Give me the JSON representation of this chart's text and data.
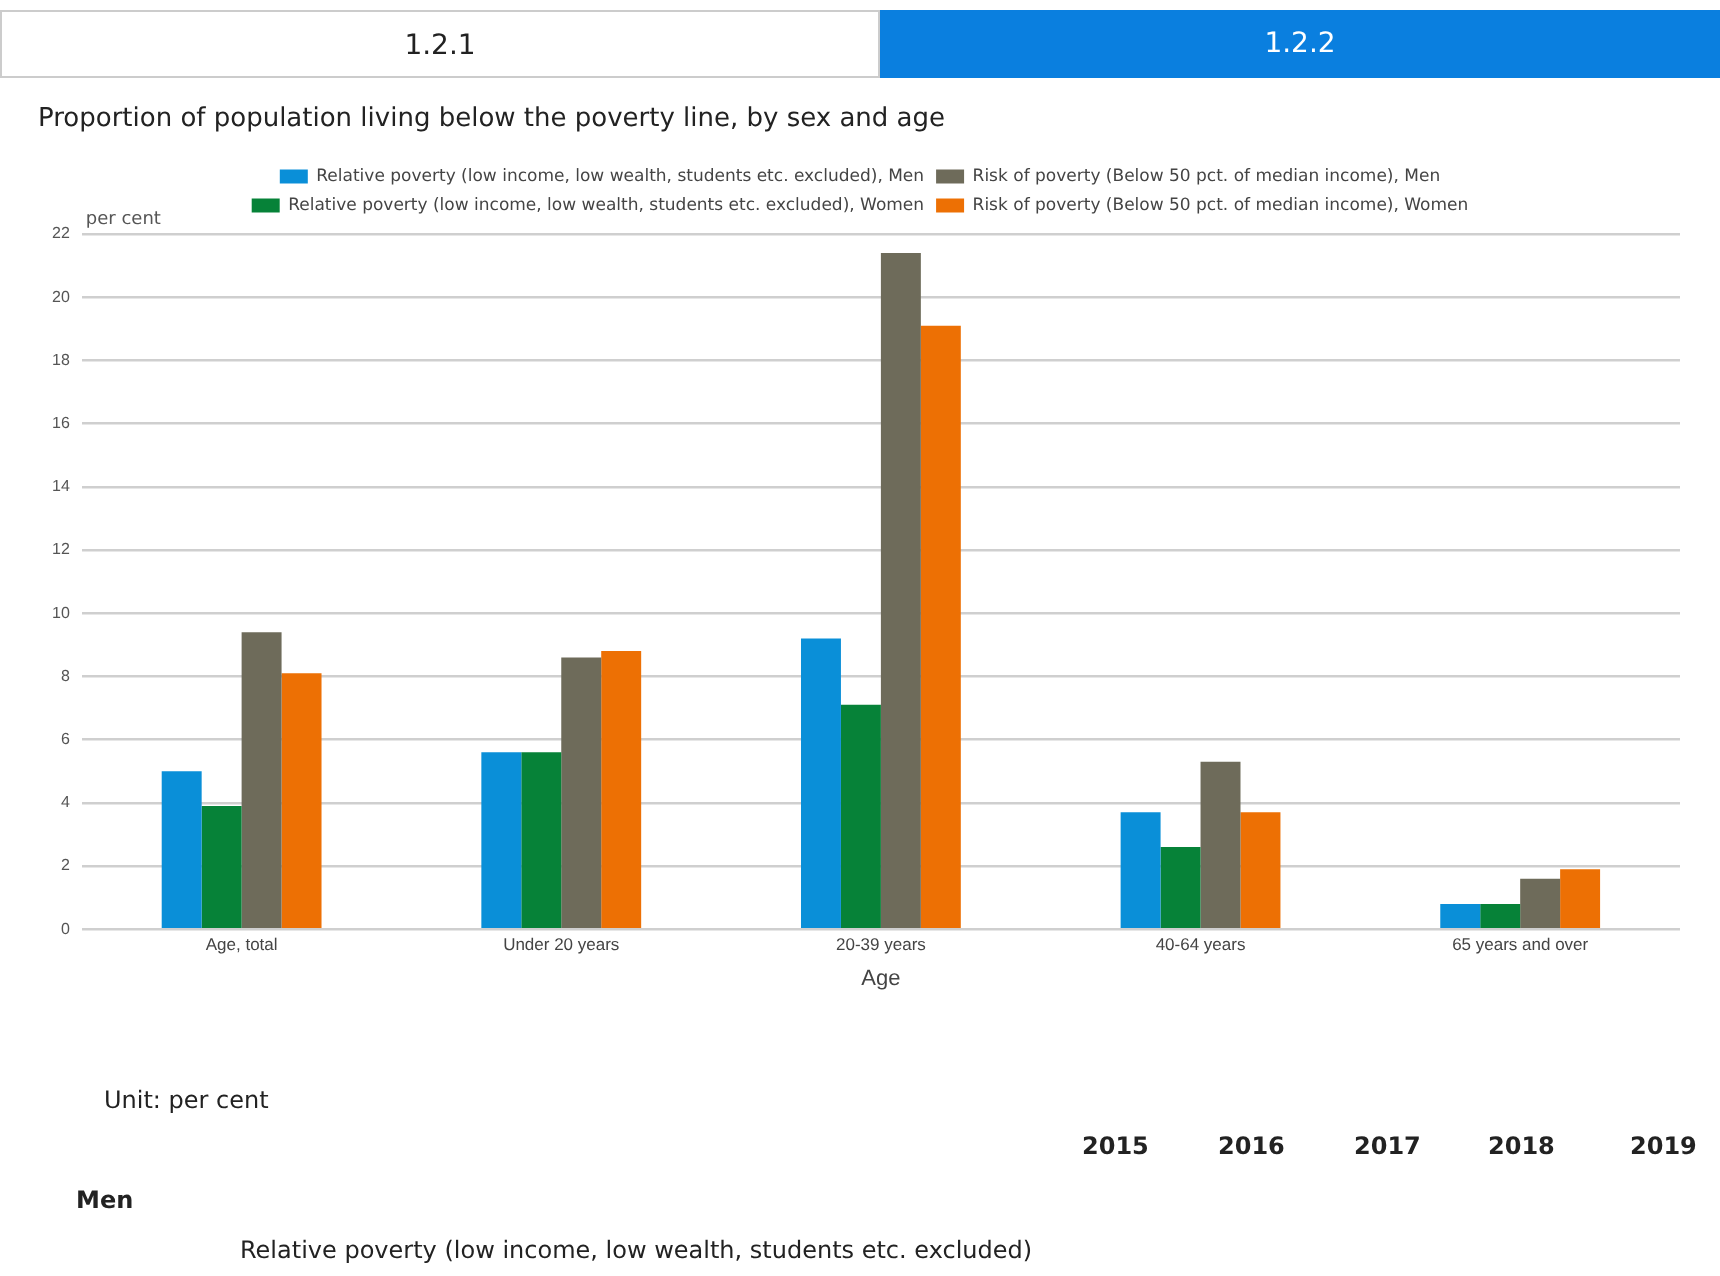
{
  "chart_data": {
    "type": "bar",
    "title": "Proportion of population living below the poverty line, by sex and age",
    "xlabel": "Age",
    "ylabel": "per cent",
    "categories": [
      "Age, total",
      "Under 20 years",
      "20-39 years",
      "40-64 years",
      "65 years and over"
    ],
    "series": [
      {
        "name": "Relative poverty (low income, low wealth, students etc. excluded), Men",
        "color": "#0a8fd8",
        "values": [
          5.0,
          5.6,
          9.2,
          3.7,
          0.8
        ]
      },
      {
        "name": "Relative poverty (low income, low wealth, students etc. excluded), Women",
        "color": "#068238",
        "values": [
          3.9,
          5.6,
          7.1,
          2.6,
          0.8
        ]
      },
      {
        "name": "Risk of poverty (Below 50 pct. of median income), Men",
        "color": "#6e6b5a",
        "values": [
          9.4,
          8.6,
          21.4,
          5.3,
          1.6
        ]
      },
      {
        "name": "Risk of poverty (Below 50 pct. of median income), Women",
        "color": "#ed7004",
        "values": [
          8.1,
          8.8,
          19.1,
          3.7,
          1.9
        ]
      }
    ],
    "ylim": [
      0,
      22
    ],
    "yticks": [
      0,
      2,
      4,
      6,
      8,
      10,
      12,
      14,
      16,
      18,
      20,
      22
    ],
    "grid": "y",
    "legend": "top",
    "annotations": [
      "1.2.1",
      "1.2.2",
      "Unit: per cent",
      "2015",
      "2016",
      "2017",
      "2018",
      "2019",
      "Men",
      "Relative poverty (low income, low wealth, students etc. excluded)"
    ]
  }
}
